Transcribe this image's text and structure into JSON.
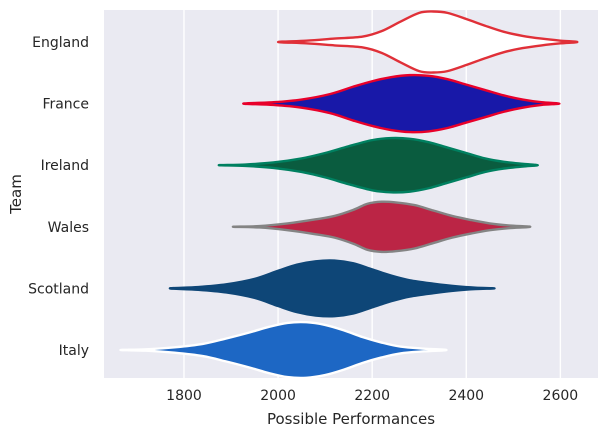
{
  "chart_data": {
    "type": "violin",
    "xlabel": "Possible Performances",
    "ylabel": "Team",
    "xlim": [
      1630,
      2680
    ],
    "x_ticks": [
      1800,
      2000,
      2200,
      2400,
      2600
    ],
    "grid": true,
    "orientation": "horizontal",
    "categories": [
      "England",
      "France",
      "Ireland",
      "Wales",
      "Scotland",
      "Italy"
    ],
    "series": [
      {
        "category": "England",
        "fill": "#ffffff",
        "stroke": "#e03038",
        "min": 2000,
        "max": 2636,
        "profile_x": [
          2000,
          2060,
          2120,
          2180,
          2220,
          2260,
          2300,
          2330,
          2360,
          2400,
          2440,
          2480,
          2520,
          2560,
          2600,
          2636
        ],
        "profile_w": [
          0.0,
          0.02,
          0.05,
          0.08,
          0.16,
          0.3,
          0.43,
          0.45,
          0.43,
          0.34,
          0.24,
          0.15,
          0.09,
          0.05,
          0.02,
          0.0
        ]
      },
      {
        "category": "France",
        "fill": "#1818a8",
        "stroke": "#e8002a",
        "min": 1926,
        "max": 2598,
        "profile_x": [
          1926,
          1990,
          2050,
          2110,
          2160,
          2200,
          2240,
          2280,
          2320,
          2360,
          2400,
          2440,
          2480,
          2520,
          2560,
          2598
        ],
        "profile_w": [
          0.0,
          0.02,
          0.06,
          0.14,
          0.25,
          0.33,
          0.39,
          0.42,
          0.41,
          0.36,
          0.28,
          0.2,
          0.12,
          0.06,
          0.02,
          0.0
        ]
      },
      {
        "category": "Ireland",
        "fill": "#0a5c3f",
        "stroke": "#008060",
        "min": 1874,
        "max": 2552,
        "profile_x": [
          1874,
          1930,
          1990,
          2050,
          2100,
          2150,
          2200,
          2240,
          2280,
          2320,
          2360,
          2400,
          2440,
          2480,
          2520,
          2552
        ],
        "profile_w": [
          0.0,
          0.01,
          0.04,
          0.1,
          0.18,
          0.28,
          0.37,
          0.4,
          0.39,
          0.34,
          0.26,
          0.18,
          0.1,
          0.05,
          0.02,
          0.0
        ]
      },
      {
        "category": "Wales",
        "fill": "#bb2545",
        "stroke": "#848484",
        "min": 1904,
        "max": 2536,
        "profile_x": [
          1904,
          1960,
          2020,
          2080,
          2120,
          2160,
          2190,
          2220,
          2250,
          2290,
          2330,
          2370,
          2410,
          2450,
          2490,
          2536
        ],
        "profile_w": [
          0.0,
          0.01,
          0.05,
          0.11,
          0.16,
          0.25,
          0.34,
          0.37,
          0.36,
          0.32,
          0.24,
          0.16,
          0.1,
          0.05,
          0.02,
          0.0
        ]
      },
      {
        "category": "Scotland",
        "fill": "#0e4677",
        "stroke": "#0e4677",
        "min": 1770,
        "max": 2460,
        "profile_x": [
          1770,
          1830,
          1890,
          1950,
          2000,
          2040,
          2080,
          2120,
          2160,
          2200,
          2240,
          2280,
          2330,
          2380,
          2420,
          2460
        ],
        "profile_w": [
          0.0,
          0.02,
          0.06,
          0.14,
          0.26,
          0.35,
          0.4,
          0.41,
          0.37,
          0.28,
          0.19,
          0.12,
          0.07,
          0.03,
          0.01,
          0.0
        ]
      },
      {
        "category": "Italy",
        "fill": "#1d67c4",
        "stroke": "#ffffff",
        "min": 1665,
        "max": 2358,
        "profile_x": [
          1665,
          1720,
          1780,
          1840,
          1890,
          1940,
          1980,
          2020,
          2060,
          2100,
          2140,
          2180,
          2220,
          2260,
          2310,
          2358
        ],
        "profile_w": [
          0.0,
          0.01,
          0.04,
          0.09,
          0.17,
          0.26,
          0.34,
          0.4,
          0.41,
          0.37,
          0.29,
          0.19,
          0.11,
          0.05,
          0.02,
          0.0
        ]
      }
    ]
  }
}
